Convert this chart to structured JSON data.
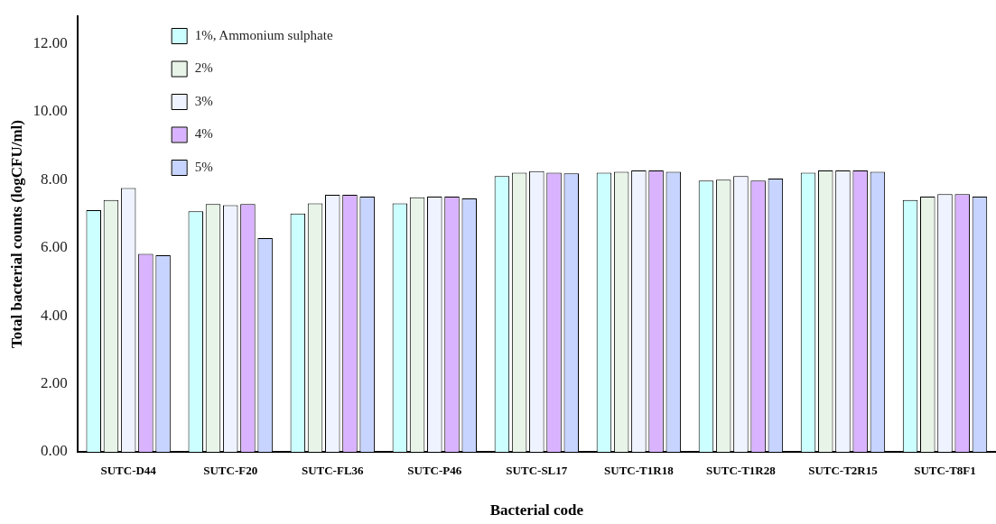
{
  "chart_data": {
    "type": "bar",
    "xlabel": "Bacterial code",
    "ylabel": "Total bacterial counts (logCFU/ml)",
    "categories": [
      "SUTC-D44",
      "SUTC-F20",
      "SUTC-FL36",
      "SUTC-P46",
      "SUTC-SL17",
      "SUTC-T1R18",
      "SUTC-T1R28",
      "SUTC-T2R15",
      "SUTC-T8F1"
    ],
    "series": [
      {
        "name": "1%, Ammonium sulphate",
        "color": "#ccffff",
        "values": [
          7.1,
          7.07,
          7.0,
          7.3,
          8.1,
          8.2,
          7.97,
          8.2,
          7.4
        ]
      },
      {
        "name": "2%",
        "color": "#e8f4e8",
        "values": [
          7.4,
          7.28,
          7.3,
          7.48,
          8.2,
          8.23,
          8.0,
          8.27,
          7.5
        ]
      },
      {
        "name": "3%",
        "color": "#eef3ff",
        "values": [
          7.75,
          7.25,
          7.55,
          7.5,
          8.25,
          8.27,
          8.1,
          8.27,
          7.57
        ]
      },
      {
        "name": "4%",
        "color": "#d9b3ff",
        "values": [
          5.82,
          7.28,
          7.55,
          7.5,
          8.2,
          8.27,
          7.97,
          8.27,
          7.57
        ]
      },
      {
        "name": "5%",
        "color": "#c6d4ff",
        "values": [
          5.78,
          6.28,
          7.5,
          7.45,
          8.18,
          8.23,
          8.03,
          8.23,
          7.5
        ]
      }
    ],
    "ylim": [
      0,
      12.8
    ],
    "yticks": [
      {
        "value": 0,
        "label": "0.00"
      },
      {
        "value": 2,
        "label": "2.00"
      },
      {
        "value": 4,
        "label": "4.00"
      },
      {
        "value": 6,
        "label": "6.00"
      },
      {
        "value": 8,
        "label": "8.00"
      },
      {
        "value": 10,
        "label": "10.00"
      },
      {
        "value": 12,
        "label": "12.00"
      }
    ],
    "grid": false,
    "legend": "top left"
  }
}
